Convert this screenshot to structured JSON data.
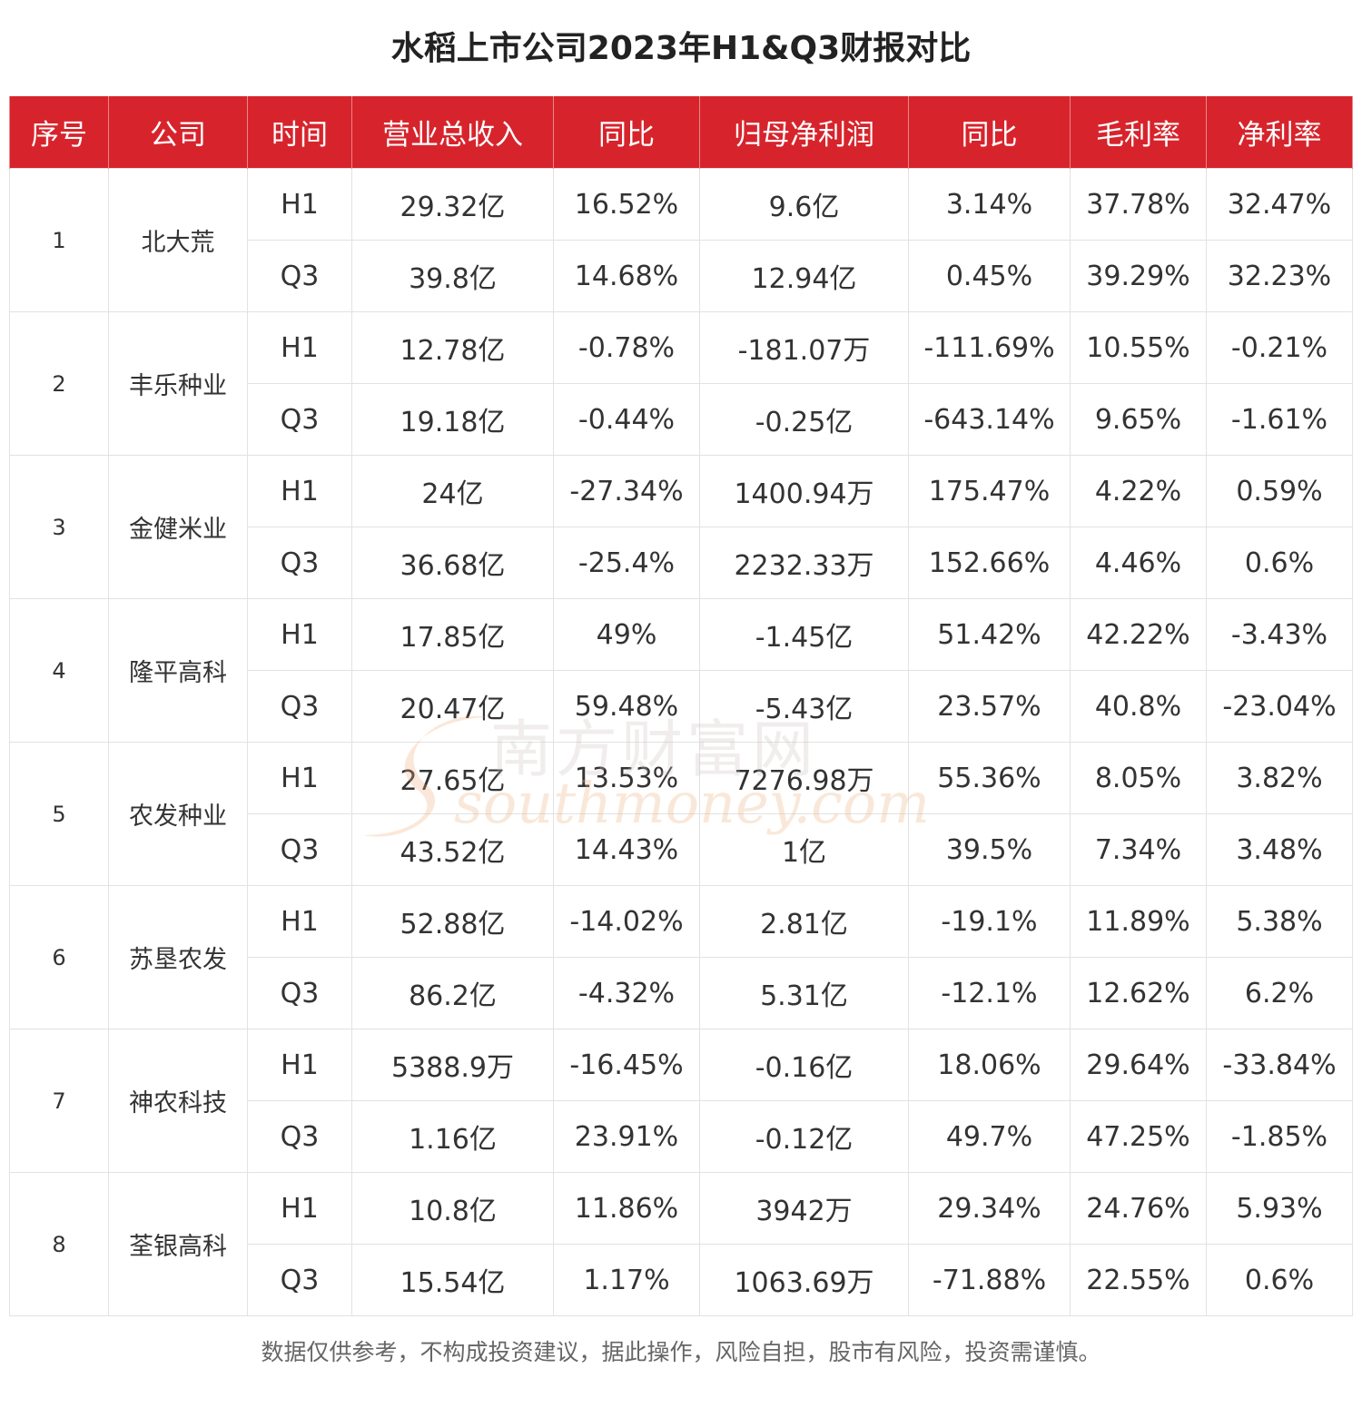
{
  "title": "水稻上市公司2023年H1&Q3财报对比",
  "headers": [
    "序号",
    "公司",
    "时间",
    "营业总收入",
    "同比",
    "归母净利润",
    "同比",
    "毛利率",
    "净利率"
  ],
  "rows": [
    {
      "seq": "1",
      "company": "北大荒",
      "periods": [
        {
          "time": "H1",
          "revenue": "29.32亿",
          "revenue_yoy": "16.52%",
          "net_profit": "9.6亿",
          "profit_yoy": "3.14%",
          "gross_margin": "37.78%",
          "net_margin": "32.47%"
        },
        {
          "time": "Q3",
          "revenue": "39.8亿",
          "revenue_yoy": "14.68%",
          "net_profit": "12.94亿",
          "profit_yoy": "0.45%",
          "gross_margin": "39.29%",
          "net_margin": "32.23%"
        }
      ]
    },
    {
      "seq": "2",
      "company": "丰乐种业",
      "periods": [
        {
          "time": "H1",
          "revenue": "12.78亿",
          "revenue_yoy": "-0.78%",
          "net_profit": "-181.07万",
          "profit_yoy": "-111.69%",
          "gross_margin": "10.55%",
          "net_margin": "-0.21%"
        },
        {
          "time": "Q3",
          "revenue": "19.18亿",
          "revenue_yoy": "-0.44%",
          "net_profit": "-0.25亿",
          "profit_yoy": "-643.14%",
          "gross_margin": "9.65%",
          "net_margin": "-1.61%"
        }
      ]
    },
    {
      "seq": "3",
      "company": "金健米业",
      "periods": [
        {
          "time": "H1",
          "revenue": "24亿",
          "revenue_yoy": "-27.34%",
          "net_profit": "1400.94万",
          "profit_yoy": "175.47%",
          "gross_margin": "4.22%",
          "net_margin": "0.59%"
        },
        {
          "time": "Q3",
          "revenue": "36.68亿",
          "revenue_yoy": "-25.4%",
          "net_profit": "2232.33万",
          "profit_yoy": "152.66%",
          "gross_margin": "4.46%",
          "net_margin": "0.6%"
        }
      ]
    },
    {
      "seq": "4",
      "company": "隆平高科",
      "periods": [
        {
          "time": "H1",
          "revenue": "17.85亿",
          "revenue_yoy": "49%",
          "net_profit": "-1.45亿",
          "profit_yoy": "51.42%",
          "gross_margin": "42.22%",
          "net_margin": "-3.43%"
        },
        {
          "time": "Q3",
          "revenue": "20.47亿",
          "revenue_yoy": "59.48%",
          "net_profit": "-5.43亿",
          "profit_yoy": "23.57%",
          "gross_margin": "40.8%",
          "net_margin": "-23.04%"
        }
      ]
    },
    {
      "seq": "5",
      "company": "农发种业",
      "periods": [
        {
          "time": "H1",
          "revenue": "27.65亿",
          "revenue_yoy": "13.53%",
          "net_profit": "7276.98万",
          "profit_yoy": "55.36%",
          "gross_margin": "8.05%",
          "net_margin": "3.82%"
        },
        {
          "time": "Q3",
          "revenue": "43.52亿",
          "revenue_yoy": "14.43%",
          "net_profit": "1亿",
          "profit_yoy": "39.5%",
          "gross_margin": "7.34%",
          "net_margin": "3.48%"
        }
      ]
    },
    {
      "seq": "6",
      "company": "苏垦农发",
      "periods": [
        {
          "time": "H1",
          "revenue": "52.88亿",
          "revenue_yoy": "-14.02%",
          "net_profit": "2.81亿",
          "profit_yoy": "-19.1%",
          "gross_margin": "11.89%",
          "net_margin": "5.38%"
        },
        {
          "time": "Q3",
          "revenue": "86.2亿",
          "revenue_yoy": "-4.32%",
          "net_profit": "5.31亿",
          "profit_yoy": "-12.1%",
          "gross_margin": "12.62%",
          "net_margin": "6.2%"
        }
      ]
    },
    {
      "seq": "7",
      "company": "神农科技",
      "periods": [
        {
          "time": "H1",
          "revenue": "5388.9万",
          "revenue_yoy": "-16.45%",
          "net_profit": "-0.16亿",
          "profit_yoy": "18.06%",
          "gross_margin": "29.64%",
          "net_margin": "-33.84%"
        },
        {
          "time": "Q3",
          "revenue": "1.16亿",
          "revenue_yoy": "23.91%",
          "net_profit": "-0.12亿",
          "profit_yoy": "49.7%",
          "gross_margin": "47.25%",
          "net_margin": "-1.85%"
        }
      ]
    },
    {
      "seq": "8",
      "company": "荃银高科",
      "periods": [
        {
          "time": "H1",
          "revenue": "10.8亿",
          "revenue_yoy": "11.86%",
          "net_profit": "3942万",
          "profit_yoy": "29.34%",
          "gross_margin": "24.76%",
          "net_margin": "5.93%"
        },
        {
          "time": "Q3",
          "revenue": "15.54亿",
          "revenue_yoy": "1.17%",
          "net_profit": "1063.69万",
          "profit_yoy": "-71.88%",
          "gross_margin": "22.55%",
          "net_margin": "0.6%"
        }
      ]
    }
  ],
  "watermark": {
    "cn": "南方财富网",
    "en": "southmoney.com"
  },
  "footer": "数据仅供参考，不构成投资建议，据此操作，风险自担，股市有风险，投资需谨慎。",
  "colors": {
    "header_bg": "#d7242c",
    "header_text": "#ffffff",
    "border": "#e2e2e2",
    "text": "#333333"
  }
}
